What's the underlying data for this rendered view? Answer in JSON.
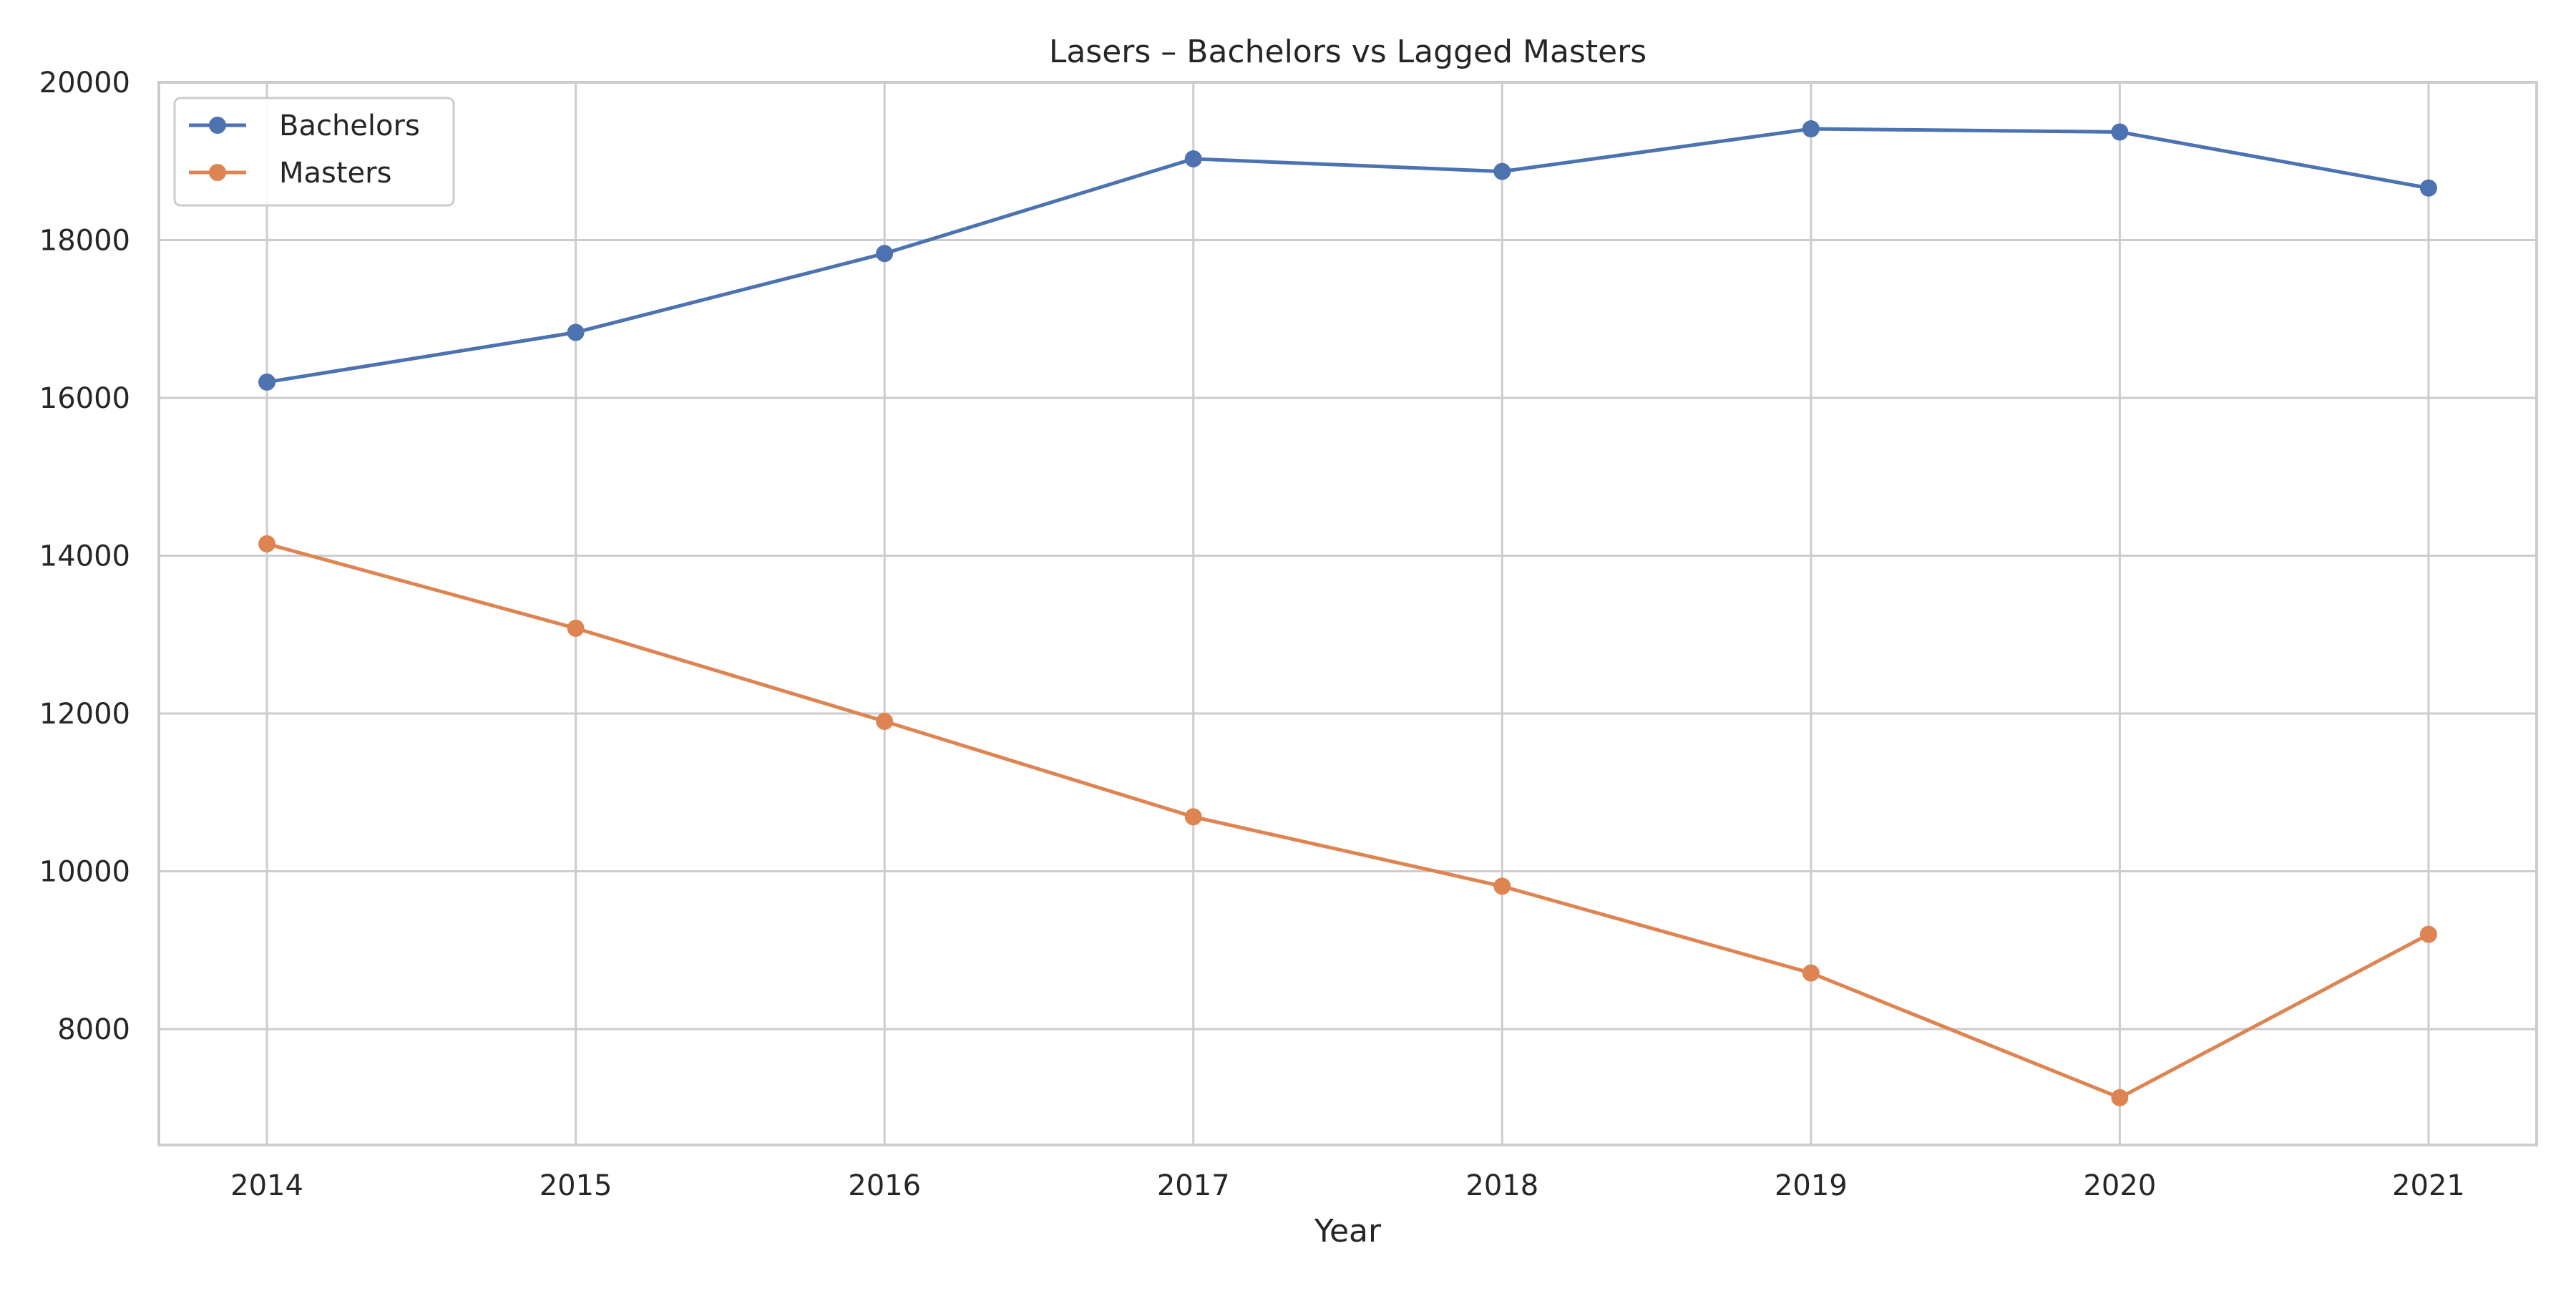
{
  "chart_data": {
    "type": "line",
    "title": "Lasers – Bachelors vs Lagged Masters",
    "xlabel": "Year",
    "ylabel": "",
    "x": [
      2014,
      2015,
      2016,
      2017,
      2018,
      2019,
      2020,
      2021
    ],
    "xticks": [
      "2014",
      "2015",
      "2016",
      "2017",
      "2018",
      "2019",
      "2020",
      "2021"
    ],
    "yticks": [
      "8000",
      "10000",
      "12000",
      "14000",
      "16000",
      "18000",
      "20000"
    ],
    "xlim": [
      2013.65,
      2021.35
    ],
    "ylim": [
      6530,
      20000
    ],
    "grid": true,
    "legend_position": "top-left",
    "series": [
      {
        "name": "Bachelors",
        "color": "#4c72b0",
        "values": [
          16200,
          16830,
          17830,
          19030,
          18870,
          19410,
          19370,
          18660
        ]
      },
      {
        "name": "Masters",
        "color": "#dd8452",
        "values": [
          14150,
          13080,
          11900,
          10690,
          9810,
          8710,
          7130,
          9200
        ]
      }
    ]
  }
}
